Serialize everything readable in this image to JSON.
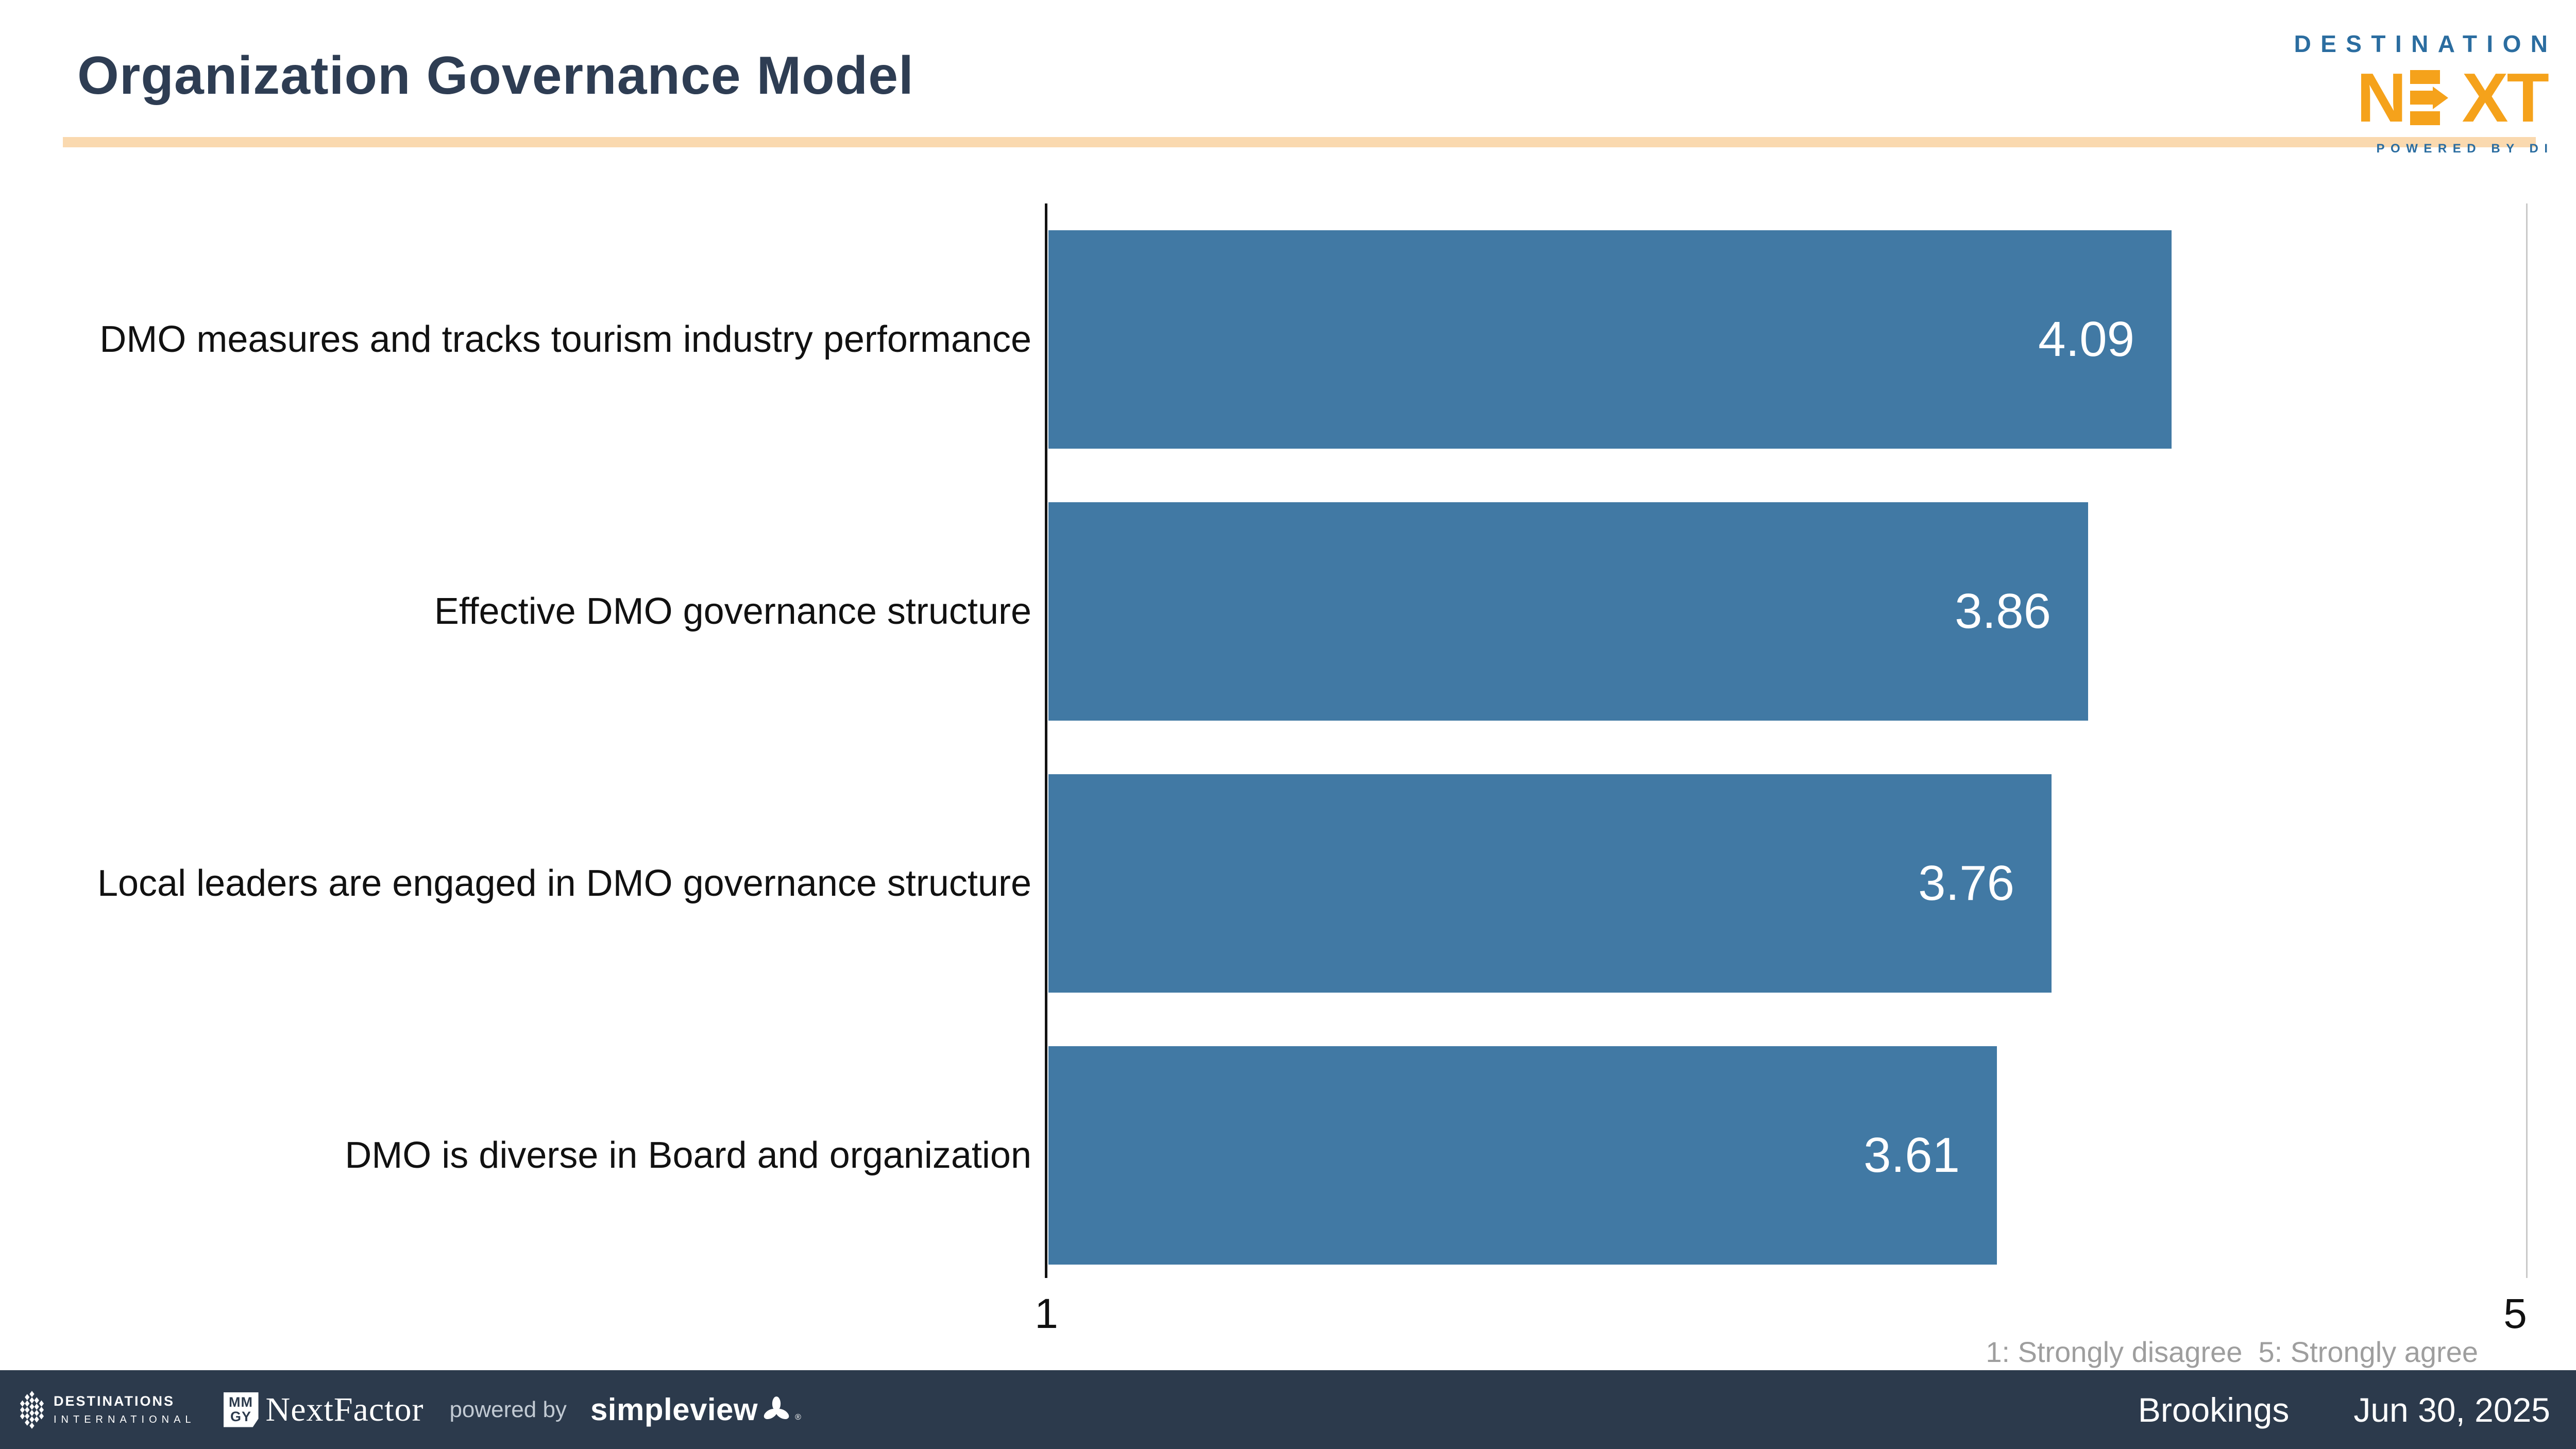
{
  "slide": {
    "title": "Organization Governance Model",
    "title_color": "#2E3D53",
    "accent_bar_color": "#FAD9AF"
  },
  "brand_logo": {
    "destination": "DESTINATION",
    "next_n": "N",
    "next_x": "X",
    "next_t": "T",
    "powered_by": "POWERED BY DI",
    "blue": "#2B6DA0",
    "orange": "#F5A21B"
  },
  "chart_data": {
    "type": "bar",
    "orientation": "horizontal",
    "title": "Organization Governance Model",
    "categories": [
      "DMO measures and tracks tourism industry performance",
      "Effective DMO governance structure",
      "Local leaders are engaged in DMO governance structure",
      "DMO is diverse in Board and organization"
    ],
    "values": [
      4.09,
      3.86,
      3.76,
      3.61
    ],
    "value_labels": [
      "4.09",
      "3.86",
      "3.76",
      "3.61"
    ],
    "xlim": [
      1,
      5
    ],
    "x_ticks": [
      "1",
      "5"
    ],
    "bar_color": "#4179A4",
    "value_label_color": "#FFFFFF",
    "gridline": "single light line at x=5",
    "legend_note": "1: Strongly disagree  5: Strongly agree",
    "legend_note_color": "#9E9E9E"
  },
  "footer": {
    "bg_color": "#2C3A4C",
    "destinations_international": {
      "line1": "DESTINATIONS",
      "line2": "INTERNATIONAL"
    },
    "mmgy_nextfactor": {
      "box_top": "MM",
      "box_bottom": "GY",
      "name": "NextFactor"
    },
    "powered_by": "powered by",
    "simpleview": "simpleview",
    "reg_mark": "®",
    "client": "Brookings",
    "date": "Jun 30, 2025"
  }
}
